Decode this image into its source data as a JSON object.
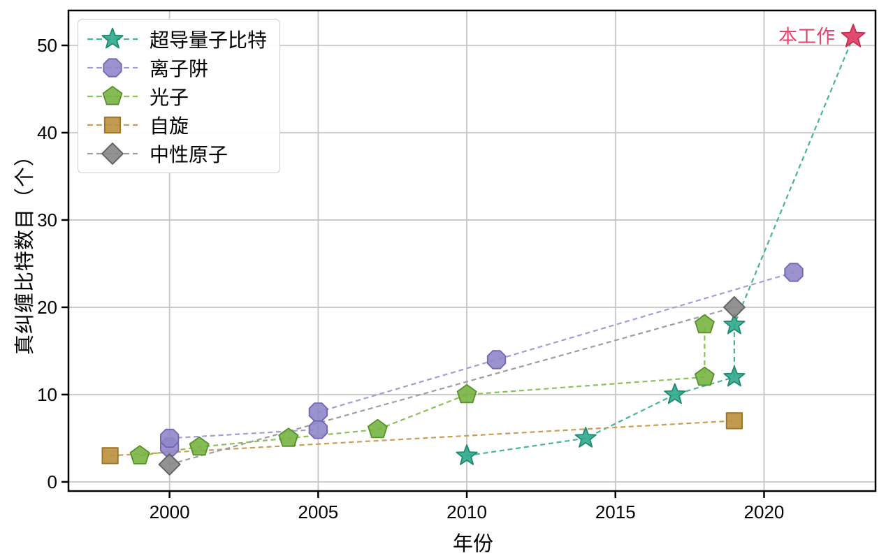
{
  "figure": {
    "x_label": "年份",
    "y_label": "真纠缠比特数目（个）",
    "background": "#ffffff",
    "grid_color": "#c6c6c6",
    "spine_color": "#000000",
    "annotation": {
      "label": "本工作",
      "year": 2023,
      "value": 51,
      "color": "#e2456a",
      "star_color": "#df3a5f",
      "star_edge": "#c92d50"
    }
  },
  "chart_data": {
    "type": "line",
    "title": "",
    "xlabel": "年份",
    "ylabel": "真纠缠比特数目（个）",
    "x_ticks": [
      2000,
      2005,
      2010,
      2015,
      2020
    ],
    "y_ticks": [
      0,
      10,
      20,
      30,
      40,
      50
    ],
    "x_range": [
      1996.6,
      2023.75
    ],
    "y_range": [
      -1.05,
      54
    ],
    "grid": true,
    "legend_position": "upper-left",
    "line_style": "dashed",
    "series": [
      {
        "name": "超导量子比特",
        "marker": "star",
        "color": "#2fa98d",
        "edge": "#1b8a70",
        "line_color": "#45b49a",
        "points": [
          [
            2010,
            3
          ],
          [
            2014,
            5
          ],
          [
            2017,
            10
          ],
          [
            2019,
            12
          ],
          [
            2019,
            18
          ],
          [
            2023,
            51
          ]
        ],
        "note": "last point is the highlighted 本工作 star"
      },
      {
        "name": "离子阱",
        "marker": "octagon",
        "color": "#8f87c8",
        "edge": "#7066b5",
        "line_color": "#a39cd6",
        "points": [
          [
            2000,
            4
          ],
          [
            2000,
            5
          ],
          [
            2005,
            6
          ],
          [
            2005,
            8
          ],
          [
            2011,
            14
          ],
          [
            2021,
            24
          ]
        ]
      },
      {
        "name": "光子",
        "marker": "pentagon",
        "color": "#78b441",
        "edge": "#578f2b",
        "line_color": "#8ac255",
        "points": [
          [
            1999,
            3
          ],
          [
            2001,
            4
          ],
          [
            2004,
            5
          ],
          [
            2007,
            6
          ],
          [
            2010,
            10
          ],
          [
            2018,
            12
          ],
          [
            2018,
            18
          ]
        ]
      },
      {
        "name": "自旋",
        "marker": "square",
        "color": "#bd8f3e",
        "edge": "#99731f",
        "line_color": "#c99e52",
        "points": [
          [
            1998,
            3
          ],
          [
            2019,
            7
          ]
        ]
      },
      {
        "name": "中性原子",
        "marker": "diamond",
        "color": "#868686",
        "edge": "#5f5f5f",
        "line_color": "#9e9e9e",
        "points": [
          [
            2000,
            2
          ],
          [
            2019,
            20
          ]
        ]
      }
    ]
  }
}
